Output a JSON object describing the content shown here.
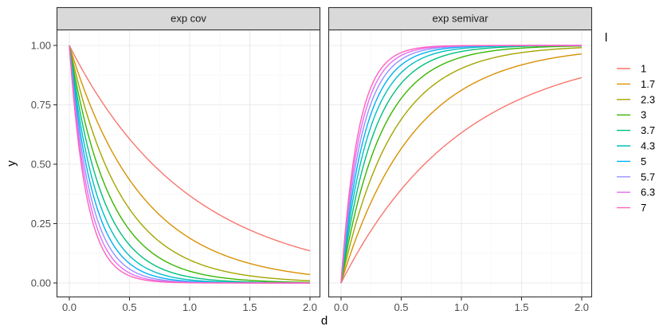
{
  "chart_data": {
    "type": "line",
    "panels": [
      {
        "strip": "exp cov",
        "function": "exp(-l*d)",
        "series": [
          {
            "l": 1.0,
            "points": [
              [
                0,
                1.0
              ],
              [
                0.5,
                0.607
              ],
              [
                1.0,
                0.368
              ],
              [
                1.5,
                0.223
              ],
              [
                2.0,
                0.135
              ]
            ]
          },
          {
            "l": 1.666667,
            "points": [
              [
                0,
                1.0
              ],
              [
                0.5,
                0.435
              ],
              [
                1.0,
                0.189
              ],
              [
                1.5,
                0.082
              ],
              [
                2.0,
                0.036
              ]
            ]
          },
          {
            "l": 2.333333,
            "points": [
              [
                0,
                1.0
              ],
              [
                0.5,
                0.311
              ],
              [
                1.0,
                0.097
              ],
              [
                1.5,
                0.03
              ],
              [
                2.0,
                0.009
              ]
            ]
          },
          {
            "l": 3.0,
            "points": [
              [
                0,
                1.0
              ],
              [
                0.5,
                0.223
              ],
              [
                1.0,
                0.05
              ],
              [
                1.5,
                0.011
              ],
              [
                2.0,
                0.002
              ]
            ]
          },
          {
            "l": 3.666667,
            "points": [
              [
                0,
                1.0
              ],
              [
                0.5,
                0.16
              ],
              [
                1.0,
                0.026
              ],
              [
                1.5,
                0.004
              ],
              [
                2.0,
                0.001
              ]
            ]
          },
          {
            "l": 4.333333,
            "points": [
              [
                0,
                1.0
              ],
              [
                0.5,
                0.115
              ],
              [
                1.0,
                0.013
              ],
              [
                1.5,
                0.002
              ],
              [
                2.0,
                0.0
              ]
            ]
          },
          {
            "l": 5.0,
            "points": [
              [
                0,
                1.0
              ],
              [
                0.5,
                0.082
              ],
              [
                1.0,
                0.007
              ],
              [
                1.5,
                0.001
              ],
              [
                2.0,
                0.0
              ]
            ]
          },
          {
            "l": 5.666667,
            "points": [
              [
                0,
                1.0
              ],
              [
                0.5,
                0.059
              ],
              [
                1.0,
                0.003
              ],
              [
                1.5,
                0.0
              ],
              [
                2.0,
                0.0
              ]
            ]
          },
          {
            "l": 6.333333,
            "points": [
              [
                0,
                1.0
              ],
              [
                0.5,
                0.042
              ],
              [
                1.0,
                0.002
              ],
              [
                1.5,
                0.0
              ],
              [
                2.0,
                0.0
              ]
            ]
          },
          {
            "l": 7.0,
            "points": [
              [
                0,
                1.0
              ],
              [
                0.5,
                0.03
              ],
              [
                1.0,
                0.001
              ],
              [
                1.5,
                0.0
              ],
              [
                2.0,
                0.0
              ]
            ]
          }
        ]
      },
      {
        "strip": "exp semivar",
        "function": "1-exp(-l*d)",
        "series": [
          {
            "l": 1.0,
            "points": [
              [
                0,
                0.0
              ],
              [
                0.5,
                0.393
              ],
              [
                1.0,
                0.632
              ],
              [
                1.5,
                0.777
              ],
              [
                2.0,
                0.865
              ]
            ]
          },
          {
            "l": 1.666667,
            "points": [
              [
                0,
                0.0
              ],
              [
                0.5,
                0.565
              ],
              [
                1.0,
                0.811
              ],
              [
                1.5,
                0.918
              ],
              [
                2.0,
                0.964
              ]
            ]
          },
          {
            "l": 2.333333,
            "points": [
              [
                0,
                0.0
              ],
              [
                0.5,
                0.689
              ],
              [
                1.0,
                0.903
              ],
              [
                1.5,
                0.97
              ],
              [
                2.0,
                0.991
              ]
            ]
          },
          {
            "l": 3.0,
            "points": [
              [
                0,
                0.0
              ],
              [
                0.5,
                0.777
              ],
              [
                1.0,
                0.95
              ],
              [
                1.5,
                0.989
              ],
              [
                2.0,
                0.998
              ]
            ]
          },
          {
            "l": 3.666667,
            "points": [
              [
                0,
                0.0
              ],
              [
                0.5,
                0.84
              ],
              [
                1.0,
                0.974
              ],
              [
                1.5,
                0.996
              ],
              [
                2.0,
                0.999
              ]
            ]
          },
          {
            "l": 4.333333,
            "points": [
              [
                0,
                0.0
              ],
              [
                0.5,
                0.885
              ],
              [
                1.0,
                0.987
              ],
              [
                1.5,
                0.998
              ],
              [
                2.0,
                1.0
              ]
            ]
          },
          {
            "l": 5.0,
            "points": [
              [
                0,
                0.0
              ],
              [
                0.5,
                0.918
              ],
              [
                1.0,
                0.993
              ],
              [
                1.5,
                0.999
              ],
              [
                2.0,
                1.0
              ]
            ]
          },
          {
            "l": 5.666667,
            "points": [
              [
                0,
                0.0
              ],
              [
                0.5,
                0.941
              ],
              [
                1.0,
                0.997
              ],
              [
                1.5,
                1.0
              ],
              [
                2.0,
                1.0
              ]
            ]
          },
          {
            "l": 6.333333,
            "points": [
              [
                0,
                0.0
              ],
              [
                0.5,
                0.958
              ],
              [
                1.0,
                0.998
              ],
              [
                1.5,
                1.0
              ],
              [
                2.0,
                1.0
              ]
            ]
          },
          {
            "l": 7.0,
            "points": [
              [
                0,
                0.0
              ],
              [
                0.5,
                0.97
              ],
              [
                1.0,
                0.999
              ],
              [
                1.5,
                1.0
              ],
              [
                2.0,
                1.0
              ]
            ]
          }
        ]
      }
    ],
    "xlabel": "d",
    "ylabel": "y",
    "xlim": [
      0,
      2
    ],
    "ylim": [
      0,
      1
    ],
    "x_ticks": [
      0.0,
      0.5,
      1.0,
      1.5,
      2.0
    ],
    "x_tick_labels": [
      "0.0",
      "0.5",
      "1.0",
      "1.5",
      "2.0"
    ],
    "y_ticks": [
      0.0,
      0.25,
      0.5,
      0.75,
      1.0
    ],
    "y_tick_labels": [
      "0.00",
      "0.25",
      "0.50",
      "0.75",
      "1.00"
    ],
    "grid": true,
    "theme": "bw",
    "legend": {
      "title": "l",
      "placement": "right",
      "entries": [
        "1",
        "1.7",
        "2.3",
        "3",
        "3.7",
        "4.3",
        "5",
        "5.7",
        "6.3",
        "7"
      ],
      "colors": [
        "#F8766D",
        "#D89000",
        "#A3A500",
        "#39B600",
        "#00BF7D",
        "#00BFC4",
        "#00B0F6",
        "#9590FF",
        "#E76BF3",
        "#FF62BC"
      ]
    },
    "colors": {
      "strip_fill": "#d9d9d9",
      "strip_border": "#333333",
      "panel_border": "#333333",
      "grid_major": "#ebebeb",
      "grid_minor": "#f5f5f5"
    }
  }
}
